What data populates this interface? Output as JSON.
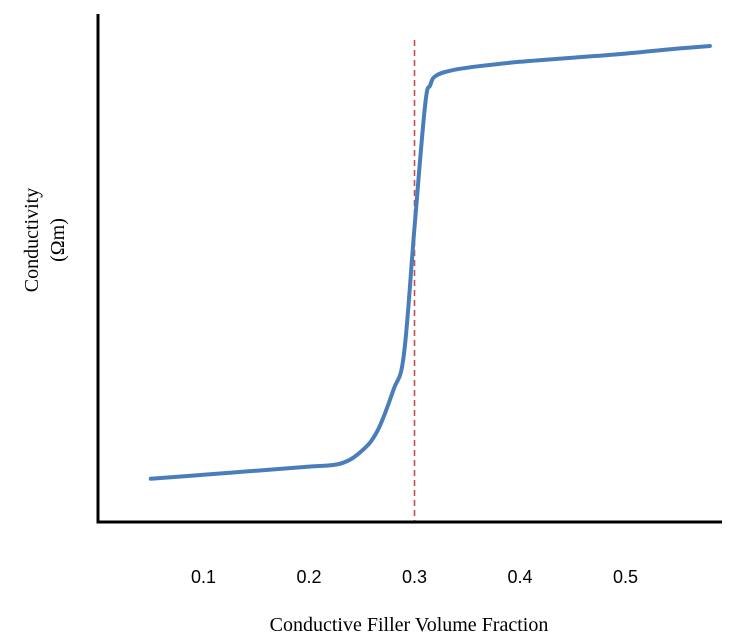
{
  "chart_data": {
    "type": "line",
    "title": "",
    "xlabel": "Conductive Filler Volume Fraction",
    "ylabel_lines": [
      "Conductivity",
      "(Ωm)"
    ],
    "xlim": [
      0.0,
      0.58
    ],
    "ylim": [
      0,
      100
    ],
    "x_ticks": [
      "0.1",
      "0.2",
      "0.3",
      "0.4",
      "0.5"
    ],
    "x_tick_values": [
      0.1,
      0.2,
      0.3,
      0.4,
      0.5
    ],
    "y_ticks_shown": false,
    "grid": false,
    "percolation_threshold": 0.3,
    "series": [
      {
        "color": "#4a7ebb",
        "x": [
          0.05,
          0.1,
          0.15,
          0.2,
          0.23,
          0.25,
          0.265,
          0.28,
          0.29,
          0.3,
          0.31,
          0.315,
          0.32,
          0.335,
          0.36,
          0.4,
          0.45,
          0.5,
          0.55,
          0.58
        ],
        "y": [
          8.5,
          9.3,
          10.1,
          10.9,
          11.5,
          14,
          18,
          26,
          33,
          58,
          82,
          86,
          87.8,
          88.9,
          89.7,
          90.6,
          91.4,
          92.2,
          93.2,
          93.7
        ]
      }
    ],
    "threshold_color": "#c0504d"
  }
}
